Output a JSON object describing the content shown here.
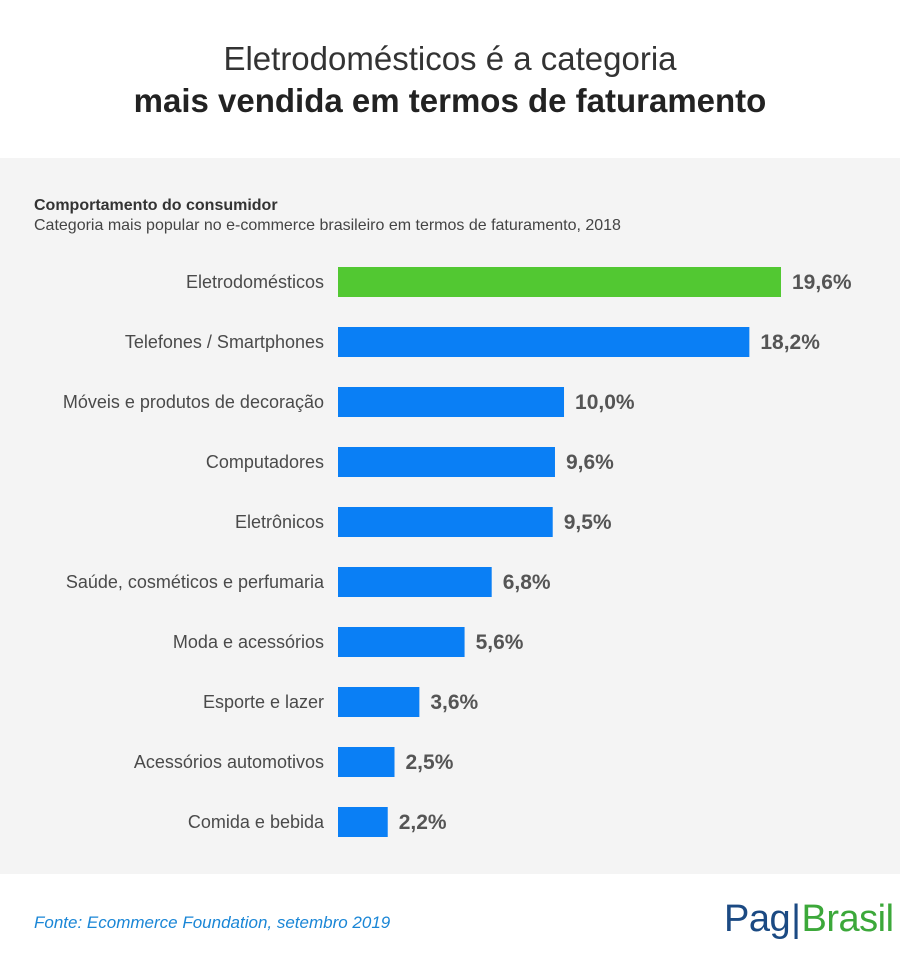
{
  "headline": {
    "line1": "Eletrodomésticos é a categoria",
    "line2": "mais vendida em termos de faturamento"
  },
  "chart_data": {
    "type": "bar",
    "orientation": "horizontal",
    "title": "Comportamento do consumidor",
    "subtitle": "Categoria mais popular no e-commerce brasileiro em termos de faturamento, 2018",
    "categories": [
      "Eletrodomésticos",
      "Telefones / Smartphones",
      "Móveis e produtos de decoração",
      "Computadores",
      "Eletrônicos",
      "Saúde, cosméticos e perfumaria",
      "Moda e acessórios",
      "Esporte e lazer",
      "Acessórios automotivos",
      "Comida e bebida"
    ],
    "values": [
      19.6,
      18.2,
      10.0,
      9.6,
      9.5,
      6.8,
      5.6,
      3.6,
      2.5,
      2.2
    ],
    "value_labels": [
      "19,6%",
      "18,2%",
      "10,0%",
      "9,6%",
      "9,5%",
      "6,8%",
      "5,6%",
      "3,6%",
      "2,5%",
      "2,2%"
    ],
    "highlight_index": 0,
    "colors": {
      "highlight": "#52c832",
      "default": "#0a7ff5"
    },
    "xlim": [
      0,
      19.6
    ]
  },
  "footer": {
    "source": "Fonte: Ecommerce Foundation, setembro 2019",
    "logo_pag": "Pag",
    "logo_sep": "|",
    "logo_brasil": "Brasil"
  }
}
